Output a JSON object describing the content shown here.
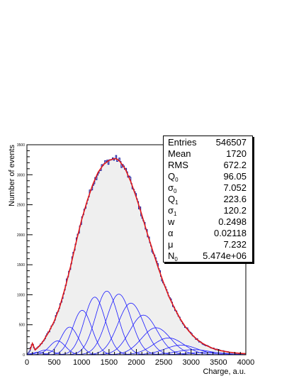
{
  "chart_data": {
    "type": "histogram",
    "xlabel": "Charge, a.u.",
    "ylabel": "Number of events",
    "xlim": [
      0,
      4000
    ],
    "ylim": [
      0,
      3500
    ],
    "x_ticks": [
      0,
      500,
      1000,
      1500,
      2000,
      2500,
      3000,
      3500,
      4000
    ],
    "x_tick_labels": [
      "0",
      "500",
      "1000",
      "1500",
      "2000",
      "2500",
      "3000",
      "3500",
      "4000"
    ],
    "y_ticks": [
      0,
      500,
      1000,
      1500,
      2000,
      2500,
      3000,
      3500
    ],
    "y_tick_labels": [
      "0",
      "500",
      "1000",
      "1500",
      "2000",
      "2500",
      "3000",
      "3500"
    ],
    "histogram_color": "#1a1aa0",
    "histogram_fill": "#efefef",
    "fit_color": "#e01a1a",
    "component_color": "#1a1aff",
    "histogram_profile": {
      "x": [
        0,
        50,
        100,
        150,
        200,
        250,
        300,
        400,
        500,
        600,
        700,
        800,
        900,
        1000,
        1100,
        1200,
        1300,
        1400,
        1500,
        1600,
        1650,
        1700,
        1800,
        1900,
        2000,
        2100,
        2200,
        2300,
        2400,
        2500,
        2600,
        2700,
        2800,
        2900,
        3000,
        3100,
        3200,
        3300,
        3400,
        3500,
        3600,
        3700,
        3800,
        3900,
        4000
      ],
      "y": [
        0,
        60,
        190,
        80,
        120,
        170,
        230,
        380,
        560,
        800,
        1120,
        1480,
        1880,
        2250,
        2560,
        2830,
        3040,
        3170,
        3240,
        3270,
        3260,
        3220,
        3090,
        2880,
        2620,
        2330,
        2020,
        1730,
        1450,
        1190,
        960,
        770,
        600,
        460,
        350,
        260,
        195,
        145,
        105,
        78,
        58,
        42,
        31,
        23,
        17
      ]
    },
    "fit_components": [
      {
        "mean": 200,
        "sigma": 100,
        "amplitude": 40
      },
      {
        "mean": 350,
        "sigma": 130,
        "amplitude": 80
      },
      {
        "mean": 560,
        "sigma": 145,
        "amplitude": 230
      },
      {
        "mean": 780,
        "sigma": 160,
        "amplitude": 460
      },
      {
        "mean": 1010,
        "sigma": 175,
        "amplitude": 740
      },
      {
        "mean": 1240,
        "sigma": 190,
        "amplitude": 960
      },
      {
        "mean": 1460,
        "sigma": 205,
        "amplitude": 1060
      },
      {
        "mean": 1680,
        "sigma": 220,
        "amplitude": 1010
      },
      {
        "mean": 1900,
        "sigma": 235,
        "amplitude": 860
      },
      {
        "mean": 2130,
        "sigma": 250,
        "amplitude": 660
      },
      {
        "mean": 2360,
        "sigma": 265,
        "amplitude": 450
      },
      {
        "mean": 2590,
        "sigma": 280,
        "amplitude": 280
      },
      {
        "mean": 2820,
        "sigma": 295,
        "amplitude": 160
      },
      {
        "mean": 3050,
        "sigma": 310,
        "amplitude": 85
      },
      {
        "mean": 3280,
        "sigma": 325,
        "amplitude": 40
      }
    ]
  },
  "stats": [
    {
      "key": "Entries",
      "sub": "",
      "value": "546507"
    },
    {
      "key": "Mean",
      "sub": "",
      "value": "1720"
    },
    {
      "key": "RMS",
      "sub": "",
      "value": "672.2"
    },
    {
      "key": "Q",
      "sub": "0",
      "value": "96.05"
    },
    {
      "key": "σ",
      "sub": "0",
      "value": "7.052"
    },
    {
      "key": "Q",
      "sub": "1",
      "value": "223.6"
    },
    {
      "key": "σ",
      "sub": "1",
      "value": "120.2"
    },
    {
      "key": "w",
      "sub": "",
      "value": "0.2498"
    },
    {
      "key": "α",
      "sub": "",
      "value": "0.02118"
    },
    {
      "key": "μ",
      "sub": "",
      "value": "7.232"
    },
    {
      "key": "N",
      "sub": "0",
      "value": "5.474e+06"
    }
  ]
}
